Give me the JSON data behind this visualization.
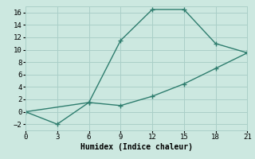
{
  "line1_x": [
    0,
    6,
    9,
    12,
    15,
    18,
    21
  ],
  "line1_y": [
    0,
    1.5,
    11.5,
    16.5,
    16.5,
    11.0,
    9.5
  ],
  "line2_x": [
    0,
    3,
    6,
    9,
    12,
    15,
    18,
    21
  ],
  "line2_y": [
    0,
    -2,
    1.5,
    1.0,
    2.5,
    4.5,
    7.0,
    9.5
  ],
  "line_color": "#2e7d6e",
  "bg_color": "#cce8e0",
  "xlabel": "Humidex (Indice chaleur)",
  "xlim": [
    0,
    21
  ],
  "ylim": [
    -3,
    17
  ],
  "xticks": [
    0,
    3,
    6,
    9,
    12,
    15,
    18,
    21
  ],
  "yticks": [
    -2,
    0,
    2,
    4,
    6,
    8,
    10,
    12,
    14,
    16
  ],
  "grid_color": "#aacfc8",
  "marker": "P",
  "markersize": 3.0,
  "linewidth": 1.0,
  "tick_fontsize": 6.5,
  "xlabel_fontsize": 7.0
}
